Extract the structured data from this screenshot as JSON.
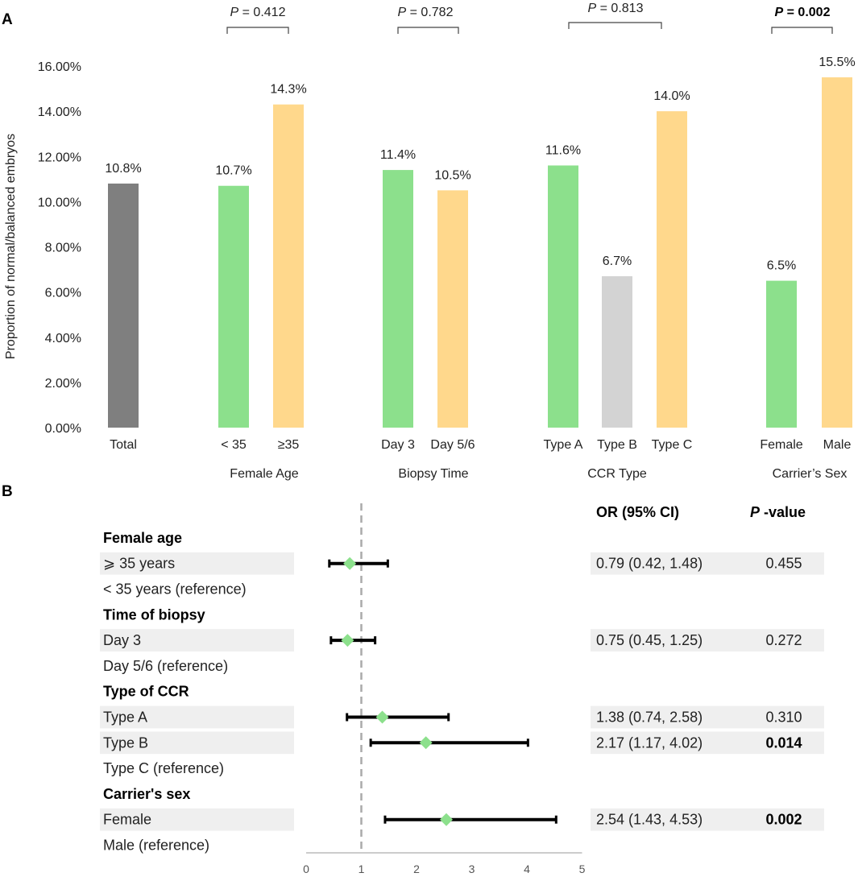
{
  "panels": {
    "a": "A",
    "b": "B"
  },
  "chart_data": [
    {
      "type": "bar",
      "title": "",
      "ylabel": "Proportion of normal/balanced embryos",
      "ylim": [
        0,
        16
      ],
      "yticks": [
        "0.00%",
        "2.00%",
        "4.00%",
        "6.00%",
        "8.00%",
        "10.00%",
        "12.00%",
        "14.00%",
        "16.00%"
      ],
      "grid": false,
      "colors": {
        "total": "#7f7f7f",
        "green": "#8ce08c",
        "orange": "#ffd88c",
        "gray": "#d3d3d3"
      },
      "bars": [
        {
          "category": "Total",
          "group": "",
          "value": 10.8,
          "label": "10.8%",
          "color": "total"
        },
        {
          "category": "< 35",
          "group": "Female Age",
          "value": 10.7,
          "label": "10.7%",
          "color": "green"
        },
        {
          "category": "≥35",
          "group": "Female Age",
          "value": 14.3,
          "label": "14.3%",
          "color": "orange"
        },
        {
          "category": "Day 3",
          "group": "Biopsy Time",
          "value": 11.4,
          "label": "11.4%",
          "color": "green"
        },
        {
          "category": "Day 5/6",
          "group": "Biopsy Time",
          "value": 10.5,
          "label": "10.5%",
          "color": "orange"
        },
        {
          "category": "Type A",
          "group": "CCR Type",
          "value": 11.6,
          "label": "11.6%",
          "color": "green"
        },
        {
          "category": "Type B",
          "group": "CCR Type",
          "value": 6.7,
          "label": "6.7%",
          "color": "gray"
        },
        {
          "category": "Type C",
          "group": "CCR Type",
          "value": 14.0,
          "label": "14.0%",
          "color": "orange"
        },
        {
          "category": "Female",
          "group": "Carrier’s Sex",
          "value": 6.5,
          "label": "6.5%",
          "color": "green"
        },
        {
          "category": "Male",
          "group": "Carrier’s Sex",
          "value": 15.5,
          "label": "15.5%",
          "color": "orange"
        }
      ],
      "groups": [
        "Female Age",
        "Biopsy Time",
        "CCR Type",
        "Carrier’s Sex"
      ],
      "pvalues": [
        {
          "group": "Female Age",
          "p": "P",
          "rest": " = 0.412",
          "bold": false
        },
        {
          "group": "Biopsy Time",
          "p": "P",
          "rest": " = 0.782",
          "bold": false
        },
        {
          "group": "CCR Type",
          "p": "P",
          "rest": " = 0.813",
          "bold": false
        },
        {
          "group": "Carrier’s Sex",
          "p": "P",
          "rest": " = 0.002",
          "bold": true
        }
      ]
    },
    {
      "type": "forest",
      "xlim": [
        0,
        5
      ],
      "xticks": [
        "0",
        "1",
        "2",
        "3",
        "4",
        "5"
      ],
      "reference_line": 1,
      "colors": {
        "point": "#8ce08c",
        "line": "#000000",
        "shade": "#efefef",
        "ref": "#aaaaaa"
      },
      "header": {
        "or": "OR (95% CI)",
        "p_italic": "P",
        "p_rest": " -value"
      },
      "rows": [
        {
          "label": "Female age",
          "type": "header"
        },
        {
          "label": "⩾ 35 years",
          "type": "item",
          "or": 0.79,
          "lo": 0.42,
          "hi": 1.48,
          "or_text": "0.79 (0.42, 1.48)",
          "p": "0.455",
          "p_bold": false
        },
        {
          "label": "< 35 years (reference)",
          "type": "ref"
        },
        {
          "label": "Time of biopsy",
          "type": "header"
        },
        {
          "label": "Day 3",
          "type": "item",
          "or": 0.75,
          "lo": 0.45,
          "hi": 1.25,
          "or_text": "0.75 (0.45, 1.25)",
          "p": "0.272",
          "p_bold": false
        },
        {
          "label": "Day 5/6 (reference)",
          "type": "ref"
        },
        {
          "label": "Type of CCR",
          "type": "header"
        },
        {
          "label": "Type A",
          "type": "item",
          "or": 1.38,
          "lo": 0.74,
          "hi": 2.58,
          "or_text": "1.38 (0.74, 2.58)",
          "p": "0.310",
          "p_bold": false
        },
        {
          "label": "Type B",
          "type": "item",
          "or": 2.17,
          "lo": 1.17,
          "hi": 4.02,
          "or_text": "2.17 (1.17, 4.02)",
          "p": "0.014",
          "p_bold": true
        },
        {
          "label": "Type C (reference)",
          "type": "ref"
        },
        {
          "label": "Carrier's sex",
          "type": "header"
        },
        {
          "label": "Female",
          "type": "item",
          "or": 2.54,
          "lo": 1.43,
          "hi": 4.53,
          "or_text": "2.54 (1.43, 4.53)",
          "p": "0.002",
          "p_bold": true
        },
        {
          "label": "Male (reference)",
          "type": "ref"
        }
      ]
    }
  ]
}
